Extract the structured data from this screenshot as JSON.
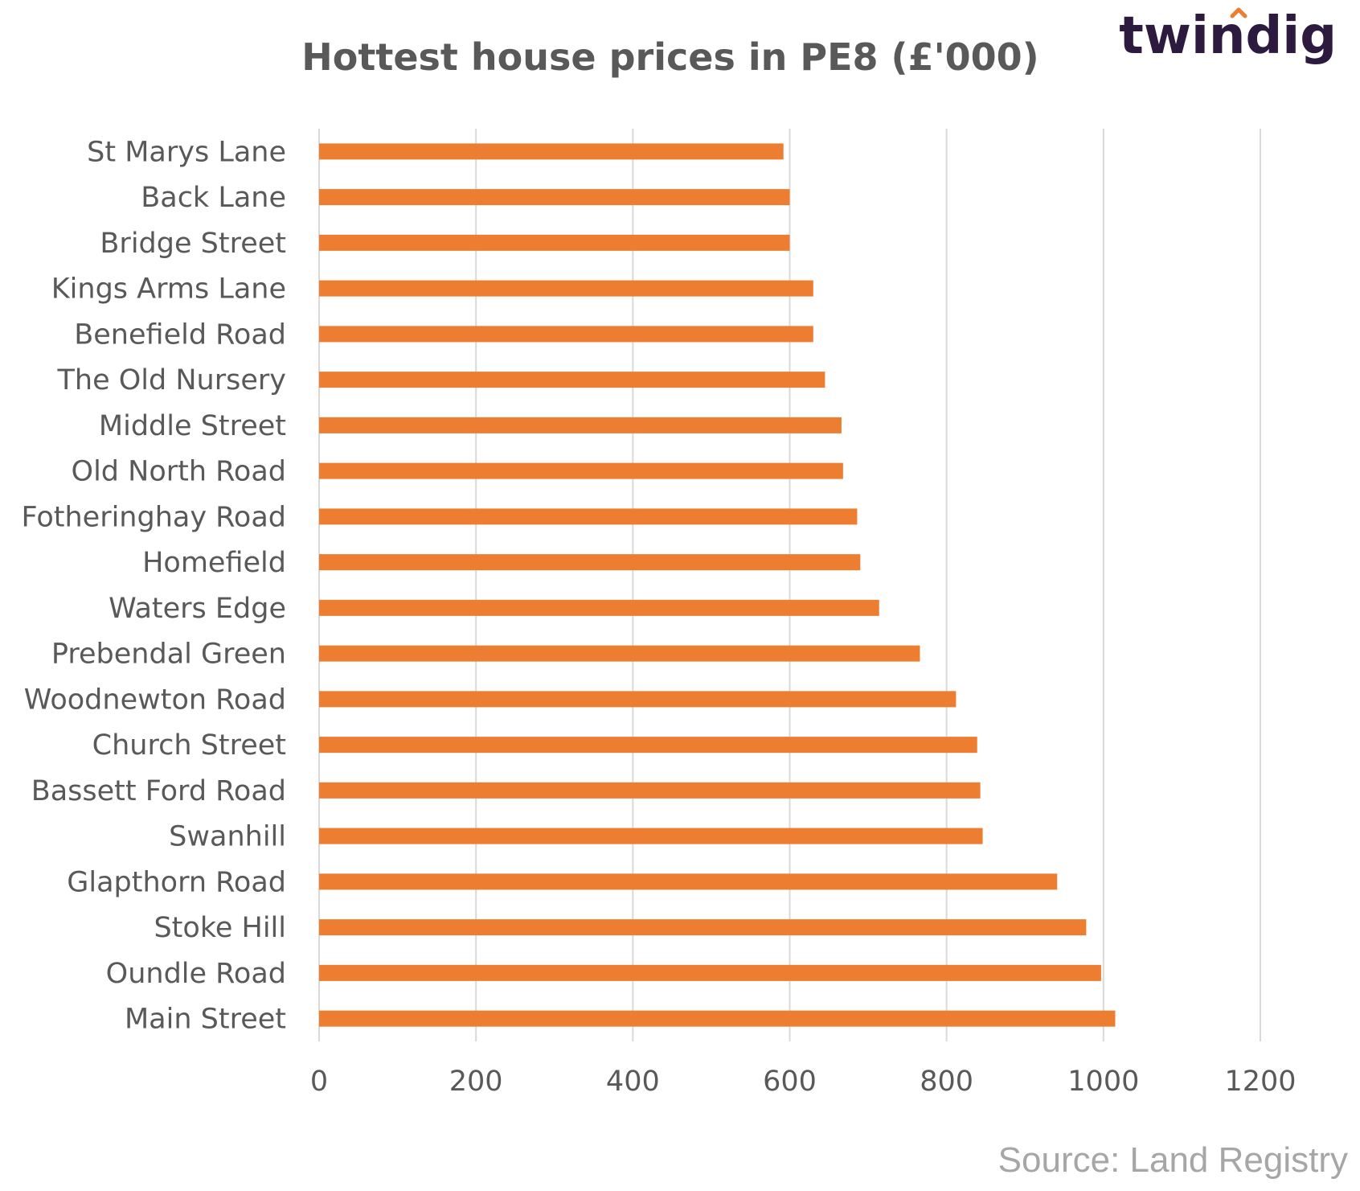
{
  "branding": {
    "logo": "twindig",
    "roof_color": "#ed7d31",
    "text_color": "#2d1a3f"
  },
  "source": "Source: Land Registry",
  "colors": {
    "bar": "#ed7d31",
    "grid": "#d9d9d9",
    "text": "#595959"
  },
  "chart_data": {
    "type": "bar",
    "orientation": "horizontal",
    "title": "Hottest house prices in PE8 (£'000)",
    "xlabel": "",
    "ylabel": "",
    "xlim": [
      0,
      1200
    ],
    "xticks": [
      0,
      200,
      400,
      600,
      800,
      1000,
      1200
    ],
    "grid": true,
    "categories": [
      "St Marys Lane",
      "Back Lane",
      "Bridge Street",
      "Kings Arms Lane",
      "Benefield Road",
      "The Old Nursery",
      "Middle Street",
      "Old North Road",
      "Fotheringhay Road",
      "Homefield",
      "Waters Edge",
      "Prebendal Green",
      "Woodnewton Road",
      "Church Street",
      "Bassett Ford Road",
      "Swanhill",
      "Glapthorn Road",
      "Stoke Hill",
      "Oundle Road",
      "Main Street"
    ],
    "values": [
      592,
      600,
      600,
      630,
      630,
      645,
      666,
      668,
      686,
      690,
      714,
      766,
      812,
      839,
      843,
      846,
      941,
      978,
      997,
      1015
    ]
  }
}
